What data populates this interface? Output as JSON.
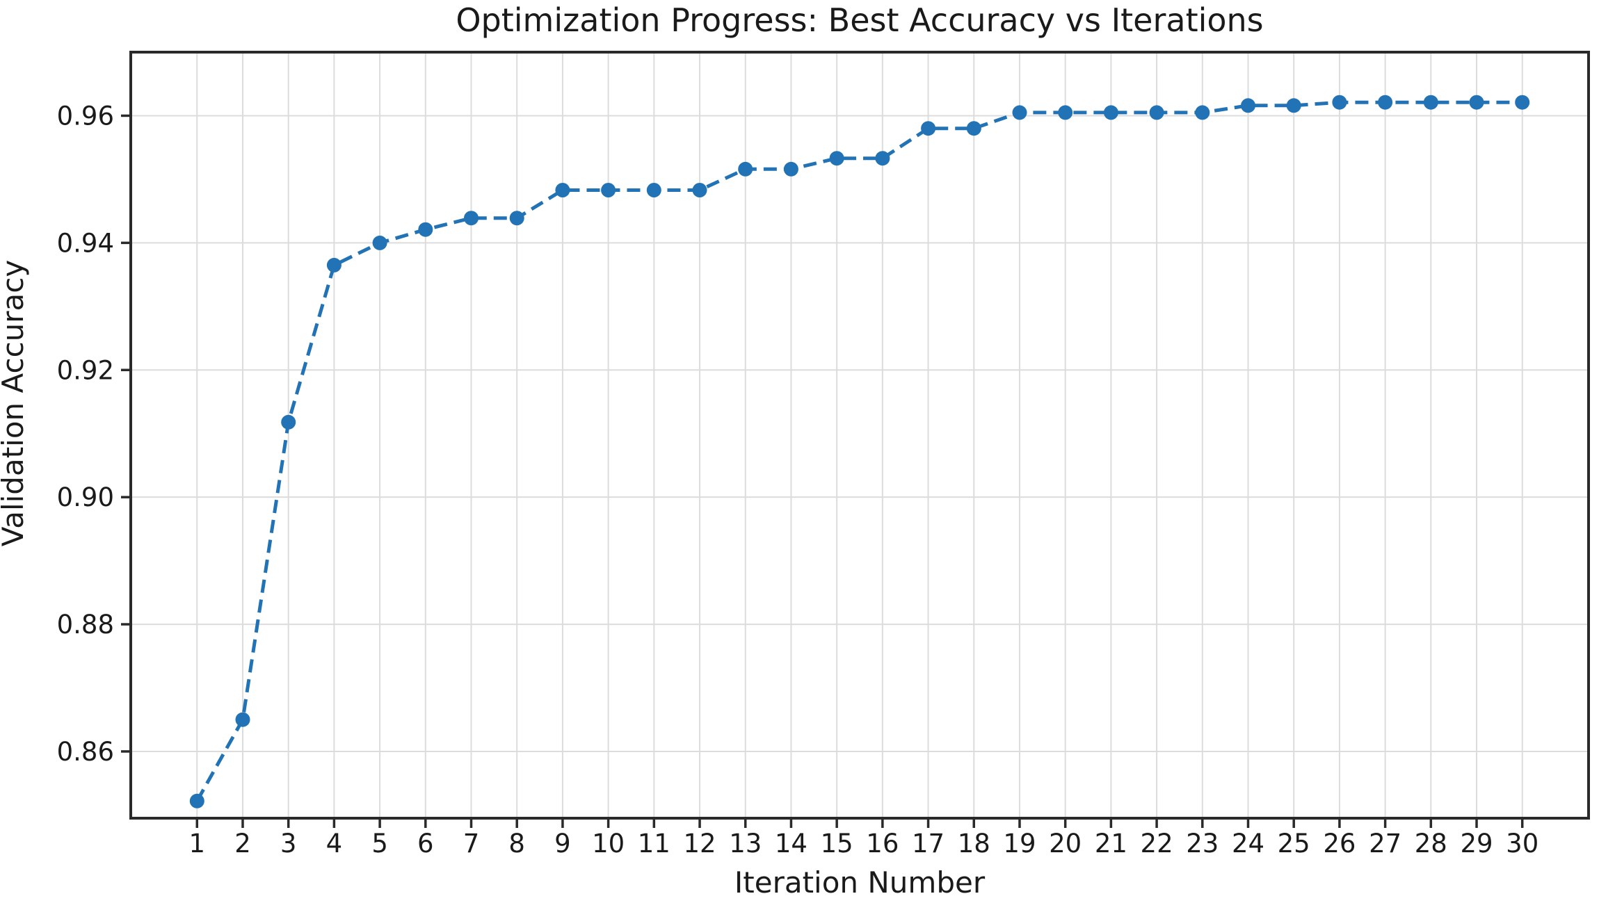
{
  "chart_data": {
    "type": "line",
    "title": "Optimization Progress: Best Accuracy vs Iterations",
    "xlabel": "Iteration Number",
    "ylabel": "Validation Accuracy",
    "x": [
      1,
      2,
      3,
      4,
      5,
      6,
      7,
      8,
      9,
      10,
      11,
      12,
      13,
      14,
      15,
      16,
      17,
      18,
      19,
      20,
      21,
      22,
      23,
      24,
      25,
      26,
      27,
      28,
      29,
      30
    ],
    "series": [
      {
        "name": "best-accuracy",
        "values": [
          0.8522,
          0.865,
          0.9118,
          0.9365,
          0.94,
          0.9421,
          0.9439,
          0.9439,
          0.9483,
          0.9483,
          0.9483,
          0.9483,
          0.9516,
          0.9516,
          0.9533,
          0.9533,
          0.958,
          0.958,
          0.9605,
          0.9605,
          0.9605,
          0.9605,
          0.9605,
          0.9616,
          0.9616,
          0.9621,
          0.9621,
          0.9621,
          0.9621,
          0.9621
        ]
      }
    ],
    "xlim": [
      -0.45,
      31.45
    ],
    "ylim": [
      0.8495,
      0.97
    ],
    "xticks": [
      1,
      2,
      3,
      4,
      5,
      6,
      7,
      8,
      9,
      10,
      11,
      12,
      13,
      14,
      15,
      16,
      17,
      18,
      19,
      20,
      21,
      22,
      23,
      24,
      25,
      26,
      27,
      28,
      29,
      30
    ],
    "yticks": [
      0.86,
      0.88,
      0.9,
      0.92,
      0.94,
      0.96
    ],
    "ytick_labels": [
      "0.86",
      "0.88",
      "0.90",
      "0.92",
      "0.94",
      "0.96"
    ],
    "grid": true,
    "legend": "none",
    "line_style": "dashed",
    "marker": "circle",
    "colors": {
      "line": "#2273b5",
      "marker": "#2273b5",
      "grid": "#dcdcdc",
      "spine": "#2a2a2a",
      "text": "#1a1a1a",
      "background": "#ffffff"
    }
  }
}
